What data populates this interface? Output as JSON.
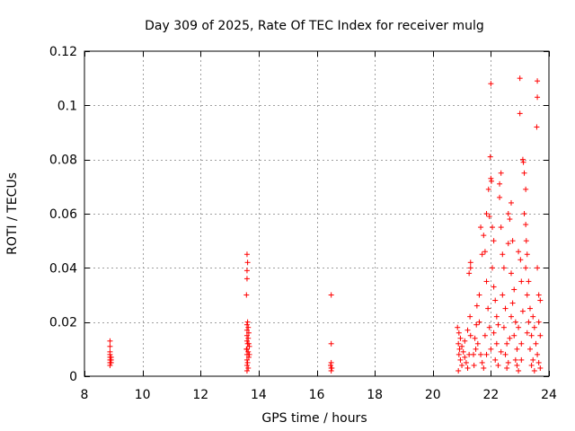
{
  "chart_data": {
    "type": "scatter",
    "title": "Day 309 of 2025, Rate Of TEC Index for receiver mulg",
    "xlabel": "GPS time / hours",
    "ylabel": "ROTI / TECUs",
    "xlim": [
      8,
      24
    ],
    "ylim": [
      0,
      0.12
    ],
    "xticks": [
      8,
      10,
      12,
      14,
      16,
      18,
      20,
      22,
      24
    ],
    "xtick_labels": [
      "8",
      "10",
      "12",
      "14",
      "16",
      "18",
      "20",
      "22",
      "24"
    ],
    "yticks": [
      0,
      0.02,
      0.04,
      0.06,
      0.08,
      0.1,
      0.12
    ],
    "ytick_labels": [
      "0",
      "0.02",
      "0.04",
      "0.06",
      "0.08",
      "0.1",
      "0.12"
    ],
    "grid": true,
    "marker": "+",
    "marker_color": "#ff0000",
    "series": [
      {
        "name": "ROTI",
        "points": [
          [
            8.88,
            0.013
          ],
          [
            8.88,
            0.011
          ],
          [
            8.88,
            0.009
          ],
          [
            8.88,
            0.008
          ],
          [
            8.88,
            0.007
          ],
          [
            8.88,
            0.006
          ],
          [
            8.88,
            0.005
          ],
          [
            8.88,
            0.004
          ],
          [
            8.92,
            0.007
          ],
          [
            8.92,
            0.006
          ],
          [
            8.92,
            0.005
          ],
          [
            13.6,
            0.045
          ],
          [
            13.62,
            0.042
          ],
          [
            13.6,
            0.039
          ],
          [
            13.6,
            0.036
          ],
          [
            13.58,
            0.03
          ],
          [
            13.62,
            0.02
          ],
          [
            13.6,
            0.019
          ],
          [
            13.64,
            0.018
          ],
          [
            13.6,
            0.017
          ],
          [
            13.66,
            0.016
          ],
          [
            13.6,
            0.015
          ],
          [
            13.64,
            0.014
          ],
          [
            13.6,
            0.013
          ],
          [
            13.62,
            0.012
          ],
          [
            13.68,
            0.011
          ],
          [
            13.6,
            0.01
          ],
          [
            13.64,
            0.009
          ],
          [
            13.6,
            0.008
          ],
          [
            13.66,
            0.007
          ],
          [
            13.6,
            0.006
          ],
          [
            13.62,
            0.005
          ],
          [
            13.6,
            0.004
          ],
          [
            13.64,
            0.003
          ],
          [
            13.6,
            0.002
          ],
          [
            13.66,
            0.012
          ],
          [
            13.68,
            0.008
          ],
          [
            13.58,
            0.01
          ],
          [
            16.5,
            0.03
          ],
          [
            16.5,
            0.012
          ],
          [
            16.5,
            0.005
          ],
          [
            16.48,
            0.004
          ],
          [
            16.5,
            0.003
          ],
          [
            16.52,
            0.003
          ],
          [
            16.5,
            0.002
          ],
          [
            20.85,
            0.018
          ],
          [
            20.9,
            0.016
          ],
          [
            20.95,
            0.014
          ],
          [
            20.88,
            0.012
          ],
          [
            21.0,
            0.011
          ],
          [
            20.92,
            0.01
          ],
          [
            21.05,
            0.009
          ],
          [
            20.9,
            0.008
          ],
          [
            21.1,
            0.007
          ],
          [
            20.95,
            0.006
          ],
          [
            21.15,
            0.005
          ],
          [
            21.0,
            0.004
          ],
          [
            21.2,
            0.003
          ],
          [
            20.88,
            0.002
          ],
          [
            21.25,
            0.008
          ],
          [
            21.1,
            0.013
          ],
          [
            21.2,
            0.017
          ],
          [
            21.3,
            0.015
          ],
          [
            21.28,
            0.022
          ],
          [
            21.3,
            0.04
          ],
          [
            21.3,
            0.042
          ],
          [
            21.25,
            0.038
          ],
          [
            21.6,
            0.02
          ],
          [
            21.55,
            0.012
          ],
          [
            21.65,
            0.008
          ],
          [
            21.7,
            0.005
          ],
          [
            21.75,
            0.003
          ],
          [
            21.8,
            0.015
          ],
          [
            21.6,
            0.03
          ],
          [
            21.7,
            0.045
          ],
          [
            21.65,
            0.055
          ],
          [
            21.75,
            0.052
          ],
          [
            21.8,
            0.046
          ],
          [
            21.85,
            0.035
          ],
          [
            21.9,
            0.025
          ],
          [
            21.95,
            0.018
          ],
          [
            21.85,
            0.06
          ],
          [
            21.95,
            0.059
          ],
          [
            22.0,
            0.108
          ],
          [
            21.98,
            0.081
          ],
          [
            22.0,
            0.073
          ],
          [
            22.02,
            0.072
          ],
          [
            21.92,
            0.069
          ],
          [
            22.05,
            0.055
          ],
          [
            22.1,
            0.05
          ],
          [
            22.05,
            0.04
          ],
          [
            22.1,
            0.033
          ],
          [
            22.15,
            0.028
          ],
          [
            22.2,
            0.022
          ],
          [
            22.1,
            0.016
          ],
          [
            22.2,
            0.012
          ],
          [
            22.15,
            0.006
          ],
          [
            22.25,
            0.004
          ],
          [
            22.0,
            0.01
          ],
          [
            22.3,
            0.071
          ],
          [
            22.35,
            0.075
          ],
          [
            22.3,
            0.066
          ],
          [
            22.35,
            0.055
          ],
          [
            22.4,
            0.045
          ],
          [
            22.45,
            0.04
          ],
          [
            22.4,
            0.03
          ],
          [
            22.5,
            0.025
          ],
          [
            22.45,
            0.018
          ],
          [
            22.55,
            0.012
          ],
          [
            22.5,
            0.008
          ],
          [
            22.6,
            0.005
          ],
          [
            22.55,
            0.003
          ],
          [
            22.6,
            0.06
          ],
          [
            22.65,
            0.058
          ],
          [
            22.6,
            0.049
          ],
          [
            22.7,
            0.064
          ],
          [
            22.75,
            0.05
          ],
          [
            22.7,
            0.038
          ],
          [
            22.8,
            0.032
          ],
          [
            22.75,
            0.027
          ],
          [
            22.85,
            0.02
          ],
          [
            22.8,
            0.015
          ],
          [
            22.9,
            0.01
          ],
          [
            22.85,
            0.006
          ],
          [
            22.9,
            0.004
          ],
          [
            22.95,
            0.002
          ],
          [
            22.95,
            0.046
          ],
          [
            23.0,
            0.11
          ],
          [
            23.0,
            0.097
          ],
          [
            23.02,
            0.043
          ],
          [
            23.05,
            0.035
          ],
          [
            23.1,
            0.08
          ],
          [
            23.12,
            0.079
          ],
          [
            23.15,
            0.075
          ],
          [
            23.2,
            0.069
          ],
          [
            23.15,
            0.06
          ],
          [
            23.2,
            0.056
          ],
          [
            23.22,
            0.05
          ],
          [
            23.25,
            0.045
          ],
          [
            23.2,
            0.04
          ],
          [
            23.3,
            0.035
          ],
          [
            23.25,
            0.03
          ],
          [
            23.35,
            0.025
          ],
          [
            23.3,
            0.02
          ],
          [
            23.4,
            0.015
          ],
          [
            23.35,
            0.01
          ],
          [
            23.45,
            0.006
          ],
          [
            23.4,
            0.004
          ],
          [
            23.5,
            0.002
          ],
          [
            23.55,
            0.012
          ],
          [
            23.6,
            0.109
          ],
          [
            23.6,
            0.103
          ],
          [
            23.58,
            0.092
          ],
          [
            23.6,
            0.04
          ],
          [
            23.65,
            0.03
          ],
          [
            23.7,
            0.028
          ],
          [
            23.65,
            0.02
          ],
          [
            23.7,
            0.015
          ],
          [
            23.6,
            0.008
          ],
          [
            23.65,
            0.005
          ],
          [
            23.7,
            0.003
          ],
          [
            23.5,
            0.018
          ],
          [
            23.45,
            0.022
          ],
          [
            21.4,
            0.008
          ],
          [
            21.45,
            0.014
          ],
          [
            21.5,
            0.019
          ],
          [
            21.42,
            0.004
          ],
          [
            21.48,
            0.01
          ],
          [
            21.52,
            0.026
          ],
          [
            22.25,
            0.019
          ],
          [
            22.35,
            0.009
          ],
          [
            22.65,
            0.014
          ],
          [
            22.7,
            0.022
          ],
          [
            22.95,
            0.018
          ],
          [
            23.05,
            0.012
          ],
          [
            23.1,
            0.024
          ],
          [
            23.25,
            0.016
          ],
          [
            23.05,
            0.006
          ],
          [
            21.85,
            0.008
          ]
        ]
      }
    ]
  }
}
